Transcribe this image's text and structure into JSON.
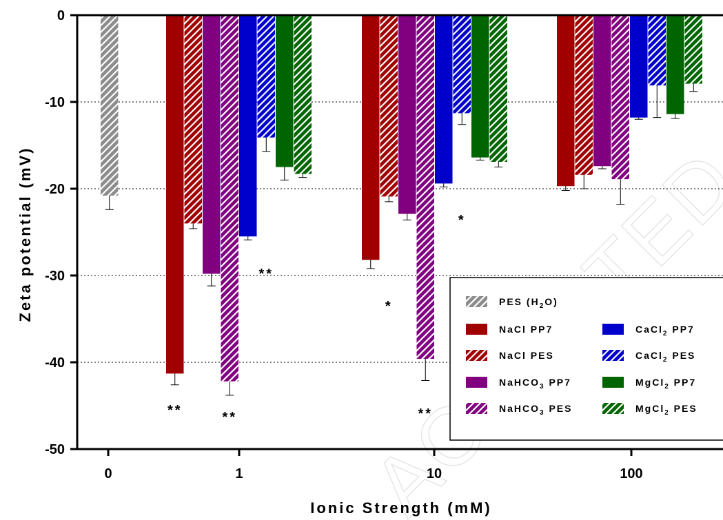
{
  "watermark": "ACCEPTED MANUSCRIPT",
  "chart_data": {
    "type": "bar",
    "xlabel": "Ionic Strength (mM)",
    "ylabel": "Zeta potential (mV)",
    "ylim": [
      -50,
      0
    ],
    "yticks": [
      "0",
      "-10",
      "-20",
      "-30",
      "-40",
      "-50"
    ],
    "ytick_values": [
      0,
      -10,
      -20,
      -30,
      -40,
      -50
    ],
    "categories": [
      "0",
      "1",
      "10",
      "100"
    ],
    "grid": "horizontal dotted",
    "legend_placement": "bottom-right",
    "colors": {
      "PES (H2O)": "#8c8c8c",
      "NaCl": "#a00000",
      "NaHCO3": "#800080",
      "CaCl2": "#0000cc",
      "MgCl2": "#006400"
    },
    "series": [
      {
        "name": "PES (H2O)",
        "legend": {
          "text": "PES (H",
          "sub": "2",
          "after": "O)"
        },
        "color": "#8c8c8c",
        "hatched": true,
        "values": [
          -20.8,
          null,
          null,
          null
        ],
        "errors": [
          1.6,
          null,
          null,
          null
        ]
      },
      {
        "name": "NaCl PP7",
        "legend": {
          "text": "NaCl PP7",
          "sub": "",
          "after": ""
        },
        "color": "#a00000",
        "hatched": false,
        "values": [
          null,
          -41.3,
          -28.2,
          -19.7
        ],
        "errors": [
          null,
          1.3,
          1.0,
          0.5
        ]
      },
      {
        "name": "NaCl PES",
        "legend": {
          "text": "NaCl PES",
          "sub": "",
          "after": ""
        },
        "color": "#a00000",
        "hatched": true,
        "values": [
          null,
          -24.0,
          -20.9,
          -18.4
        ],
        "errors": [
          null,
          0.6,
          0.6,
          1.6
        ]
      },
      {
        "name": "NaHCO3 PP7",
        "legend": {
          "text": "NaHCO",
          "sub": "3",
          "after": " PP7"
        },
        "color": "#800080",
        "hatched": false,
        "values": [
          null,
          -29.8,
          -22.9,
          -17.4
        ],
        "errors": [
          null,
          1.4,
          0.7,
          0.3
        ]
      },
      {
        "name": "NaHCO3 PES",
        "legend": {
          "text": "NaHCO",
          "sub": "3",
          "after": " PES"
        },
        "color": "#800080",
        "hatched": true,
        "values": [
          null,
          -42.2,
          -39.6,
          -18.9
        ],
        "errors": [
          null,
          1.6,
          2.5,
          2.9
        ]
      },
      {
        "name": "CaCl2 PP7",
        "legend": {
          "text": "CaCl",
          "sub": "2",
          "after": " PP7"
        },
        "color": "#0000cc",
        "hatched": false,
        "values": [
          null,
          -25.5,
          -19.4,
          -11.8
        ],
        "errors": [
          null,
          0.4,
          0.4,
          0.2
        ]
      },
      {
        "name": "CaCl2 PES",
        "legend": {
          "text": "CaCl",
          "sub": "2",
          "after": " PES"
        },
        "color": "#0000cc",
        "hatched": true,
        "values": [
          null,
          -14.1,
          -11.3,
          -8.1
        ],
        "errors": [
          null,
          1.6,
          1.3,
          3.7
        ]
      },
      {
        "name": "MgCl2 PP7",
        "legend": {
          "text": "MgCl",
          "sub": "2",
          "after": " PP7"
        },
        "color": "#006400",
        "hatched": false,
        "values": [
          null,
          -17.5,
          -16.4,
          -11.4
        ],
        "errors": [
          null,
          1.5,
          0.3,
          0.5
        ]
      },
      {
        "name": "MgCl2 PES",
        "legend": {
          "text": "MgCl",
          "sub": "2",
          "after": " PES"
        },
        "color": "#006400",
        "hatched": true,
        "values": [
          null,
          -18.3,
          -16.9,
          -7.9
        ],
        "errors": [
          null,
          0.4,
          0.6,
          0.9
        ]
      }
    ],
    "annotations": [
      {
        "text": "**",
        "category": 1,
        "series": 1,
        "value": -45.4
      },
      {
        "text": "**",
        "category": 1,
        "series": 4,
        "value": -46.2
      },
      {
        "text": "**",
        "category": 1,
        "series": 6,
        "value": -29.7
      },
      {
        "text": "*",
        "category": 2,
        "series": 2,
        "value": -33.4
      },
      {
        "text": "**",
        "category": 2,
        "series": 4,
        "value": -45.8
      },
      {
        "text": "*",
        "category": 2,
        "series": 6,
        "value": -23.5
      }
    ]
  }
}
